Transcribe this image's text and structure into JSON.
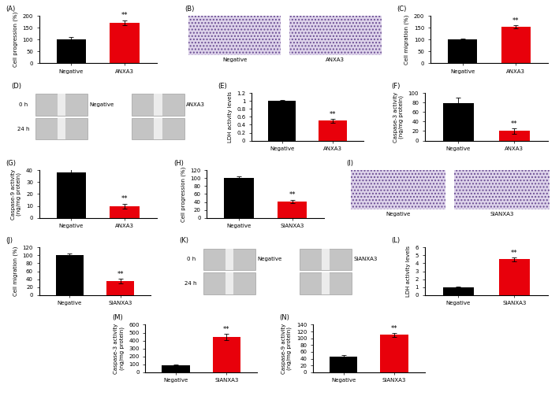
{
  "chart_data": [
    {
      "type": "bar",
      "panel": "(A)",
      "ylabel": "Cell progression (%)",
      "categories": [
        "Negative",
        "ANXA3"
      ],
      "values": [
        100,
        172
      ],
      "errors": [
        12,
        10
      ],
      "colors": [
        "#000000",
        "#e8000b"
      ],
      "ylim": [
        0,
        200
      ],
      "yticks": [
        0,
        50,
        100,
        150,
        200
      ],
      "annotation": "**"
    },
    {
      "type": "image",
      "panel": "(B)",
      "labels": [
        "Negative",
        "ANXA3"
      ]
    },
    {
      "type": "bar",
      "panel": "(C)",
      "ylabel": "Cell migration (%)",
      "categories": [
        "Negative",
        "ANXA3"
      ],
      "values": [
        100,
        155
      ],
      "errors": [
        5,
        6
      ],
      "colors": [
        "#000000",
        "#e8000b"
      ],
      "ylim": [
        0,
        200
      ],
      "yticks": [
        0,
        50,
        100,
        150,
        200
      ],
      "annotation": "**"
    },
    {
      "type": "image",
      "panel": "(D)",
      "labels": [
        "Negative",
        "ANXA3"
      ],
      "time_labels": [
        "0 h",
        "24 h"
      ]
    },
    {
      "type": "bar",
      "panel": "(E)",
      "ylabel": "LDH activity levels",
      "categories": [
        "Negative",
        "ANXA3"
      ],
      "values": [
        1.0,
        0.5
      ],
      "errors": [
        0.03,
        0.05
      ],
      "colors": [
        "#000000",
        "#e8000b"
      ],
      "ylim": [
        0,
        1.2
      ],
      "yticks": [
        0,
        0.2,
        0.4,
        0.6,
        0.8,
        1,
        1.2
      ],
      "annotation": "**"
    },
    {
      "type": "bar",
      "panel": "(F)",
      "ylabel": "Caspase-3 activity\n(ng/mg protein)",
      "categories": [
        "Negative",
        "ANXA3"
      ],
      "values": [
        78,
        20
      ],
      "errors": [
        13,
        5
      ],
      "colors": [
        "#000000",
        "#e8000b"
      ],
      "ylim": [
        0,
        100
      ],
      "yticks": [
        0,
        20,
        40,
        60,
        80,
        100
      ],
      "annotation": "**"
    },
    {
      "type": "bar",
      "panel": "(G)",
      "ylabel": "Caspase-9 activity\n(ng/mg protein)",
      "categories": [
        "Negative",
        "ANXA3"
      ],
      "values": [
        38,
        10
      ],
      "errors": [
        4,
        2
      ],
      "colors": [
        "#000000",
        "#e8000b"
      ],
      "ylim": [
        0,
        40
      ],
      "yticks": [
        0,
        10,
        20,
        30,
        40
      ],
      "annotation": "**"
    },
    {
      "type": "bar",
      "panel": "(H)",
      "ylabel": "Cell progression (%)",
      "categories": [
        "Negative",
        "SiANXA3"
      ],
      "values": [
        100,
        42
      ],
      "errors": [
        5,
        4
      ],
      "colors": [
        "#000000",
        "#e8000b"
      ],
      "ylim": [
        0,
        120
      ],
      "yticks": [
        0,
        20,
        40,
        60,
        80,
        100,
        120
      ],
      "annotation": "**"
    },
    {
      "type": "image",
      "panel": "(I)",
      "labels": [
        "Negative",
        "SiANXA3"
      ]
    },
    {
      "type": "bar",
      "panel": "(J)",
      "ylabel": "Cell migration (%)",
      "categories": [
        "Negative",
        "SiANXA3"
      ],
      "values": [
        100,
        35
      ],
      "errors": [
        5,
        6
      ],
      "colors": [
        "#000000",
        "#e8000b"
      ],
      "ylim": [
        0,
        120
      ],
      "yticks": [
        0,
        20,
        40,
        60,
        80,
        100,
        120
      ],
      "annotation": "**"
    },
    {
      "type": "image",
      "panel": "(K)",
      "labels": [
        "Negative",
        "SiANXA3"
      ],
      "time_labels": [
        "0 h",
        "24 h"
      ]
    },
    {
      "type": "bar",
      "panel": "(L)",
      "ylabel": "LDH activity levels",
      "categories": [
        "Negative",
        "SiANXA3"
      ],
      "values": [
        1,
        4.5
      ],
      "errors": [
        0.05,
        0.25
      ],
      "colors": [
        "#000000",
        "#e8000b"
      ],
      "ylim": [
        0,
        6
      ],
      "yticks": [
        0,
        1,
        2,
        3,
        4,
        5,
        6
      ],
      "annotation": "**"
    },
    {
      "type": "bar",
      "panel": "(M)",
      "ylabel": "Caspase-3 activity\n(ng/mg protein)",
      "categories": [
        "Negative",
        "SiANXA3"
      ],
      "values": [
        85,
        445
      ],
      "errors": [
        15,
        40
      ],
      "colors": [
        "#000000",
        "#e8000b"
      ],
      "ylim": [
        0,
        600
      ],
      "yticks": [
        0,
        100,
        200,
        300,
        400,
        500,
        600
      ],
      "annotation": "**"
    },
    {
      "type": "bar",
      "panel": "(N)",
      "ylabel": "Caspase-9 activity\n(ng/mg protein)",
      "categories": [
        "Negative",
        "SiANXA3"
      ],
      "values": [
        45,
        110
      ],
      "errors": [
        5,
        5
      ],
      "colors": [
        "#000000",
        "#e8000b"
      ],
      "ylim": [
        0,
        140
      ],
      "yticks": [
        0,
        20,
        40,
        60,
        80,
        100,
        120,
        140
      ],
      "annotation": "**"
    }
  ]
}
